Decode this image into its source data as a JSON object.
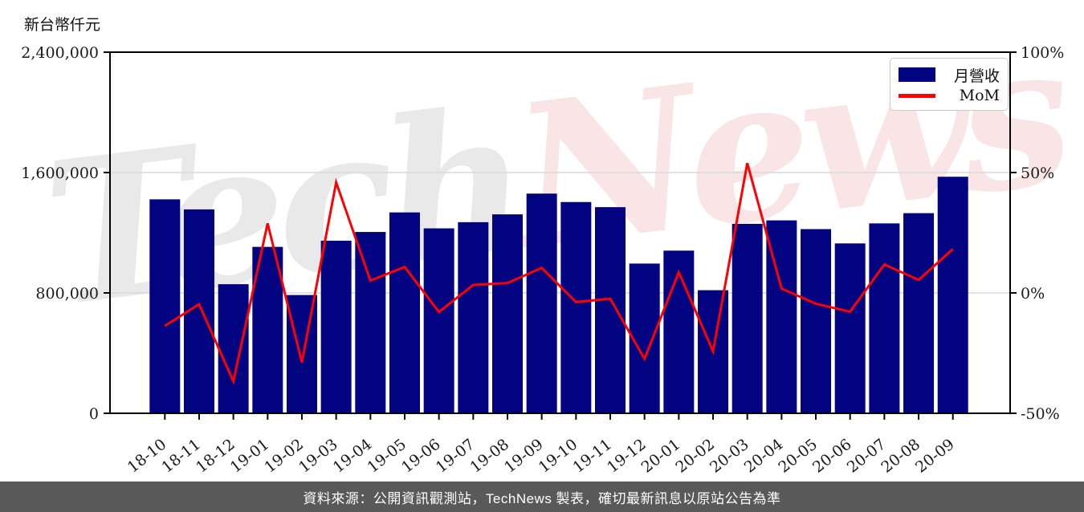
{
  "header": {
    "unit_label": "新台幣仟元"
  },
  "legend": {
    "revenue_label": "月營收",
    "mom_label": "MoM"
  },
  "watermark": {
    "left": "Tech",
    "right": "News"
  },
  "footer": {
    "text": "資料來源：公開資訊觀測站，TechNews 製表，確切最新訊息以原站公告為準"
  },
  "colors": {
    "bar": "#020381",
    "line": "#ff0000",
    "grid": "#d9d9d9",
    "axis": "#000000",
    "tick_text": "#1a1a1a",
    "footer_bg": "#595959",
    "footer_text": "#ffffff"
  },
  "chart_data": {
    "type": "bar",
    "title": "",
    "categories": [
      "18-10",
      "18-11",
      "18-12",
      "19-01",
      "19-02",
      "19-03",
      "19-04",
      "19-05",
      "19-06",
      "19-07",
      "19-08",
      "19-09",
      "19-10",
      "19-11",
      "19-12",
      "20-01",
      "20-02",
      "20-03",
      "20-04",
      "20-05",
      "20-06",
      "20-07",
      "20-08",
      "20-09"
    ],
    "series": [
      {
        "name": "月營收",
        "type": "bar",
        "axis": "left",
        "color": "#020381",
        "values": [
          1422000,
          1355000,
          858000,
          1106000,
          786000,
          1147000,
          1205000,
          1335000,
          1229000,
          1270000,
          1322000,
          1460000,
          1404000,
          1370000,
          995000,
          1081000,
          818000,
          1259000,
          1282000,
          1224000,
          1129000,
          1262000,
          1330000,
          1572000
        ]
      },
      {
        "name": "MoM",
        "type": "line",
        "axis": "right",
        "color": "#ff0000",
        "unit": "%",
        "values": [
          -13.7,
          -4.7,
          -36.7,
          28.9,
          -28.9,
          45.9,
          5.1,
          10.8,
          -7.9,
          3.3,
          4.1,
          10.4,
          -3.8,
          -2.4,
          -27.4,
          8.6,
          -24.3,
          53.9,
          1.8,
          -4.5,
          -7.8,
          11.8,
          5.4,
          18.2
        ]
      }
    ],
    "left_axis": {
      "label": "新台幣仟元",
      "min": 0,
      "max": 2400000,
      "ticks": [
        {
          "label": "0",
          "value": 0
        },
        {
          "label": "800,000",
          "value": 800000
        },
        {
          "label": "1,600,000",
          "value": 1600000
        },
        {
          "label": "2,400,000",
          "value": 2400000
        }
      ]
    },
    "right_axis": {
      "min": -50,
      "max": 100,
      "ticks": [
        {
          "label": "-50%",
          "value": -50
        },
        {
          "label": "0%",
          "value": 0
        },
        {
          "label": "50%",
          "value": 50
        },
        {
          "label": "100%",
          "value": 100
        }
      ]
    },
    "grid": true,
    "legend_position": "top-right"
  }
}
